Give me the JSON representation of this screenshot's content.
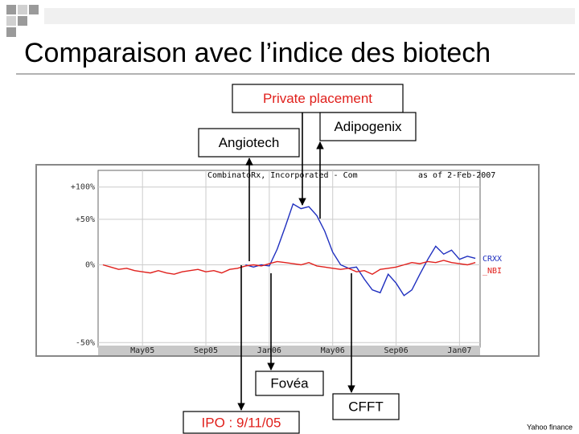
{
  "slide": {
    "title": "Comparaison avec l’indice des biotech",
    "source": "Yahoo finance"
  },
  "chart_data": {
    "type": "line",
    "title": "CombinatoRx, Incorporated - Com",
    "subtitle": "as of 2-Feb-2007",
    "log_scale": true,
    "x": [
      2.5,
      3,
      3.5,
      4,
      4.5,
      5,
      5.5,
      6,
      6.5,
      7,
      7.5,
      8,
      8.5,
      9,
      9.5,
      10,
      10.5,
      11,
      11.5,
      12,
      12.5,
      13,
      13.5,
      14,
      14.5,
      15,
      15.5,
      16,
      16.5,
      17,
      17.5,
      18,
      18.5,
      19,
      19.5,
      20,
      20.5,
      21,
      21.5,
      22,
      22.5,
      23,
      23.5,
      24,
      24.5,
      25,
      25.5,
      26
    ],
    "series": [
      {
        "name": "CRXX",
        "color": "#1f2fbf",
        "values": [
          null,
          null,
          null,
          null,
          null,
          null,
          null,
          null,
          null,
          null,
          null,
          null,
          null,
          null,
          null,
          null,
          null,
          null,
          0,
          -2,
          0,
          -1,
          15,
          40,
          72,
          65,
          68,
          55,
          35,
          12,
          0,
          -3,
          -2,
          -12,
          -20,
          -22,
          -8,
          -15,
          -24,
          -20,
          -8,
          5,
          18,
          10,
          14,
          5,
          8,
          6
        ]
      },
      {
        "name": "_NBI",
        "color": "#e0201c",
        "values": [
          0,
          -2,
          -4,
          -3,
          -5,
          -6,
          -7,
          -5,
          -7,
          -8,
          -6,
          -5,
          -4,
          -6,
          -5,
          -7,
          -4,
          -3,
          -1,
          0,
          -1,
          1,
          3,
          2,
          1,
          0,
          2,
          -1,
          -2,
          -3,
          -4,
          -3,
          -6,
          -5,
          -8,
          -4,
          -3,
          -2,
          0,
          2,
          1,
          3,
          2,
          4,
          2,
          1,
          0,
          2
        ]
      }
    ],
    "xlim": [
      2.2,
      26.3
    ],
    "xticks": [
      {
        "value": 5,
        "label": "May05"
      },
      {
        "value": 9,
        "label": "Sep05"
      },
      {
        "value": 13,
        "label": "Jan06"
      },
      {
        "value": 17,
        "label": "May06"
      },
      {
        "value": 21,
        "label": "Sep06"
      },
      {
        "value": 25,
        "label": "Jan07"
      }
    ],
    "ylim": [
      -52,
      132
    ],
    "yticks": [
      {
        "value": 100,
        "label": "+100%"
      },
      {
        "value": 50,
        "label": "+50%"
      },
      {
        "value": 0,
        "label": "0%"
      },
      {
        "value": -50,
        "label": "-50%"
      }
    ],
    "grid": true,
    "annotations": [
      {
        "text": "Private placement"
      },
      {
        "text": "Angiotech"
      },
      {
        "text": "Adipogenix"
      },
      {
        "text": "Fovéa"
      },
      {
        "text": "IPO : 9/11/05"
      },
      {
        "text": "CFFT"
      }
    ]
  }
}
